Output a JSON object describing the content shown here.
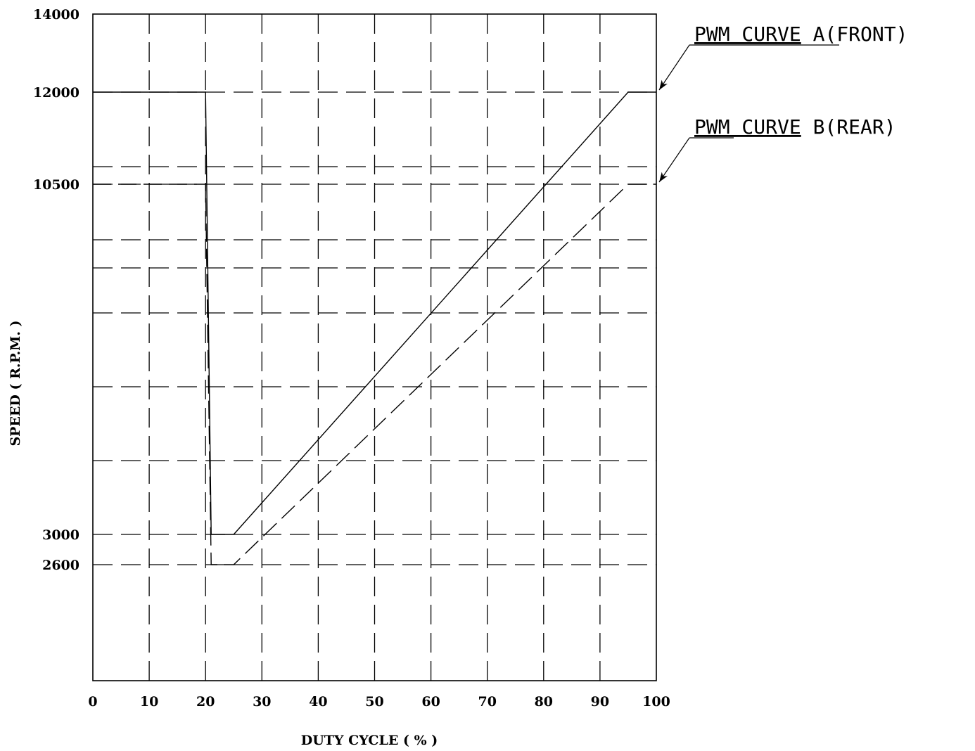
{
  "chart_data": {
    "type": "line",
    "title": "",
    "xlabel": "DUTY CYCLE ( % )",
    "ylabel": "SPEED ( R.P.M. )",
    "xlim": [
      0,
      100
    ],
    "x_ticks": [
      "0",
      "10",
      "20",
      "30",
      "40",
      "50",
      "60",
      "70",
      "80",
      "90",
      "100"
    ],
    "y_ticks_labeled": [
      {
        "value": 14000,
        "label": "14000"
      },
      {
        "value": 12000,
        "label": "12000"
      },
      {
        "value": 10500,
        "label": "10500"
      },
      {
        "value": 3000,
        "label": "3000"
      },
      {
        "value": 2600,
        "label": "2600"
      }
    ],
    "y_gridlines": [
      14000,
      12000,
      10500,
      9200,
      8100,
      7200,
      6300,
      4800,
      3000,
      2600,
      0
    ],
    "grid": true,
    "series": [
      {
        "name": "PWM CURVE A(FRONT)",
        "style": "solid",
        "x": [
          0,
          20,
          21,
          25,
          95,
          100
        ],
        "y": [
          12000,
          12000,
          3000,
          3000,
          12000,
          12000
        ]
      },
      {
        "name": "PWM CURVE B(REAR)",
        "style": "dashed",
        "x": [
          0,
          20,
          21,
          25,
          95,
          100
        ],
        "y": [
          10500,
          10500,
          2600,
          2600,
          10500,
          10500
        ]
      }
    ],
    "legend": {
      "placement": "right",
      "entries": [
        {
          "prefix": "PWM CURVE",
          "suffix": "A(FRONT)",
          "series": 0
        },
        {
          "prefix": "PWM CURVE",
          "suffix": "B(REAR)",
          "series": 1
        }
      ]
    }
  }
}
